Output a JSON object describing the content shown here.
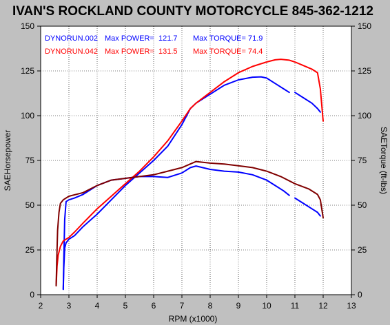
{
  "chart_data": {
    "type": "line",
    "title": "IVAN'S ROCKLAND COUNTY MOTORCYCLE 845-362-1212",
    "xlabel": "RPM (x1000)",
    "ylabel_left": "SAEHorsepower",
    "ylabel_right": "SAETorque (ft-lbs)",
    "xlim": [
      2,
      13
    ],
    "ylim": [
      0,
      150
    ],
    "x_ticks": [
      "2",
      "3",
      "4",
      "5",
      "6",
      "7",
      "8",
      "9",
      "10",
      "11",
      "12",
      "13"
    ],
    "y_ticks": [
      "0",
      "25",
      "50",
      "75",
      "100",
      "125",
      "150"
    ],
    "grid": true,
    "legend": [
      {
        "run": "DYNORUN.002",
        "power_label": "Max POWER=",
        "power": "121.7",
        "torque_label": "Max TORQUE=",
        "torque": "71.9",
        "color": "#0000ff"
      },
      {
        "run": "DYNORUN.042",
        "power_label": "Max POWER=",
        "power": "131.5",
        "torque_label": "Max TORQUE=",
        "torque": "74.4",
        "color": "#ff0000"
      }
    ],
    "series": [
      {
        "name": "DYNORUN.002",
        "measure": "power",
        "color": "#0000ff",
        "x": [
          2.8,
          2.82,
          2.85,
          2.9,
          3.0,
          3.2,
          3.5,
          4.0,
          4.5,
          5.0,
          5.5,
          6.0,
          6.5,
          7.0,
          7.3,
          7.5,
          8.0,
          8.5,
          9.0,
          9.5,
          9.8,
          10.0,
          10.3,
          10.6,
          10.8
        ],
        "y": [
          3,
          15,
          26,
          29,
          31,
          33,
          38,
          45,
          53,
          61,
          68,
          75,
          83,
          95,
          104,
          107,
          112,
          117,
          120,
          121.5,
          121.7,
          121,
          118,
          115,
          113
        ]
      },
      {
        "name": "DYNORUN.002",
        "measure": "power",
        "color": "#0000ff",
        "x": [
          11.0,
          11.3,
          11.6,
          11.8,
          11.9
        ],
        "y": [
          113,
          110,
          107,
          104,
          102
        ]
      },
      {
        "name": "DYNORUN.002",
        "measure": "torque",
        "color": "#0000ff",
        "x": [
          2.8,
          2.82,
          2.85,
          2.9,
          3.0,
          3.2,
          3.5,
          4.0,
          4.5,
          5.0,
          5.5,
          6.0,
          6.5,
          7.0,
          7.3,
          7.5,
          8.0,
          8.5,
          9.0,
          9.5,
          10.0,
          10.3,
          10.6,
          10.8
        ],
        "y": [
          3,
          20,
          42,
          52,
          53,
          54,
          56,
          61,
          64,
          65,
          66,
          66,
          65.5,
          68,
          71,
          71.9,
          70,
          69,
          68.5,
          67,
          64,
          61,
          58,
          55.5
        ]
      },
      {
        "name": "DYNORUN.002",
        "measure": "torque",
        "color": "#0000ff",
        "x": [
          11.0,
          11.3,
          11.6,
          11.8,
          11.9
        ],
        "y": [
          54,
          51,
          48,
          46,
          44
        ]
      },
      {
        "name": "DYNORUN.042",
        "measure": "power",
        "color": "#ff0000",
        "x": [
          2.55,
          2.58,
          2.62,
          2.7,
          2.8,
          3.0,
          3.2,
          3.5,
          4.0,
          4.5,
          5.0,
          5.5,
          6.0,
          6.5,
          7.0,
          7.3,
          7.5,
          8.0,
          8.5,
          9.0,
          9.5,
          10.0,
          10.3,
          10.5,
          10.8,
          11.0,
          11.3,
          11.6,
          11.8,
          11.9,
          12.0
        ],
        "y": [
          5,
          16,
          22,
          27,
          30,
          32,
          35,
          40,
          48,
          55,
          62,
          69,
          77,
          86,
          97,
          104,
          107,
          113,
          119,
          124,
          127.5,
          130,
          131.2,
          131.5,
          131,
          130,
          128,
          126,
          124,
          115,
          97
        ]
      },
      {
        "name": "DYNORUN.042",
        "measure": "torque",
        "color": "#800000",
        "x": [
          2.55,
          2.57,
          2.6,
          2.65,
          2.7,
          2.8,
          3.0,
          3.5,
          4.0,
          4.5,
          5.0,
          5.5,
          6.0,
          6.5,
          7.0,
          7.5,
          8.0,
          8.5,
          9.0,
          9.5,
          10.0,
          10.5,
          11.0,
          11.5,
          11.8,
          11.9,
          12.0
        ],
        "y": [
          5,
          20,
          36,
          46,
          51,
          53,
          55,
          57,
          61,
          64,
          65,
          66,
          67,
          69,
          71,
          74.4,
          73.5,
          73,
          72,
          71,
          69,
          66,
          62,
          59,
          56,
          53,
          43
        ]
      }
    ]
  }
}
